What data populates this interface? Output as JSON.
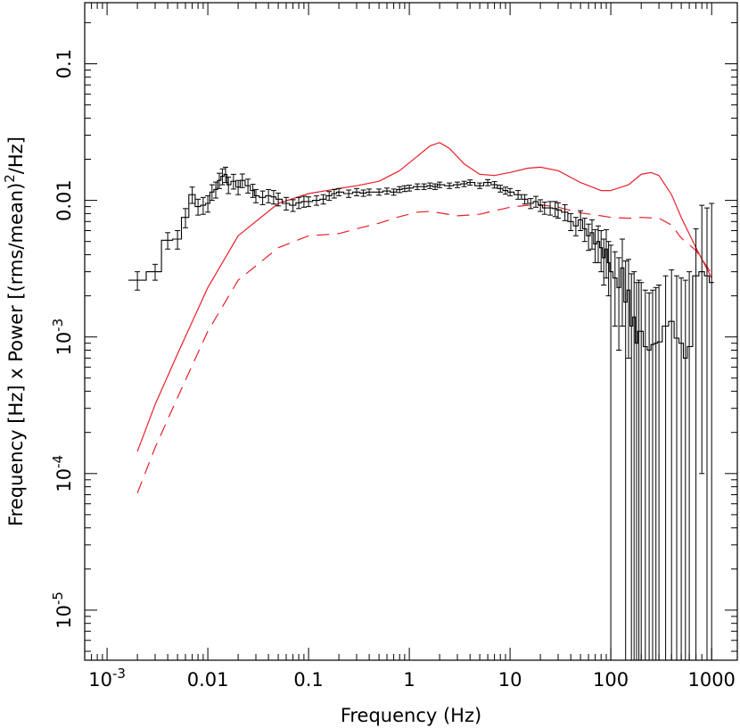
{
  "chart_data": {
    "type": "line",
    "xlabel": "Frequency (Hz)",
    "ylabel_parts": {
      "pre": "Frequency [Hz] x Power [(rms/mean)",
      "sup": "2",
      "post": "/Hz]"
    },
    "x_scale": "log",
    "y_scale": "log",
    "xlim": [
      0.0006,
      1800
    ],
    "ylim": [
      4.3e-06,
      0.28
    ],
    "x_ticks": [
      {
        "value": 0.001,
        "base": "10",
        "exp": "-3"
      },
      {
        "value": 0.01,
        "label": "0.01"
      },
      {
        "value": 0.1,
        "label": "0.1"
      },
      {
        "value": 1,
        "label": "1"
      },
      {
        "value": 10,
        "label": "10"
      },
      {
        "value": 100,
        "label": "100"
      },
      {
        "value": 1000,
        "label": "1000"
      }
    ],
    "y_ticks": [
      {
        "value": 1e-05,
        "base": "10",
        "exp": "-5"
      },
      {
        "value": 0.0001,
        "base": "10",
        "exp": "-4"
      },
      {
        "value": 0.001,
        "base": "10",
        "exp": "-3"
      },
      {
        "value": 0.01,
        "label": "0.01"
      },
      {
        "value": 0.1,
        "label": "0.1"
      }
    ],
    "colors": {
      "data": "#000000",
      "model": "#e8202a"
    },
    "series": [
      {
        "style": "solid",
        "color": "#e8202a",
        "x": [
          0.002,
          0.003,
          0.005,
          0.01,
          0.02,
          0.05,
          0.1,
          0.2,
          0.3,
          0.5,
          0.8,
          1.2,
          1.6,
          2.0,
          2.5,
          3.5,
          5,
          7,
          10,
          15,
          20,
          30,
          50,
          80,
          100,
          150,
          200,
          250,
          300,
          400,
          500,
          700,
          1000
        ],
        "y": [
          0.000145,
          0.00032,
          0.00075,
          0.0023,
          0.0055,
          0.0095,
          0.0112,
          0.0122,
          0.0128,
          0.0138,
          0.0165,
          0.021,
          0.025,
          0.0265,
          0.024,
          0.0185,
          0.0155,
          0.0152,
          0.016,
          0.0172,
          0.0175,
          0.0165,
          0.0135,
          0.0118,
          0.0118,
          0.013,
          0.0155,
          0.016,
          0.0152,
          0.011,
          0.0075,
          0.0045,
          0.0027
        ]
      },
      {
        "style": "dashed",
        "color": "#e8202a",
        "x": [
          0.002,
          0.003,
          0.005,
          0.01,
          0.02,
          0.05,
          0.1,
          0.2,
          0.3,
          0.5,
          0.8,
          1.2,
          1.6,
          2.0,
          3.0,
          5,
          7,
          10,
          15,
          20,
          30,
          50,
          80,
          100,
          150,
          200,
          300,
          400,
          500,
          700,
          1000
        ],
        "y": [
          7.2e-05,
          0.000155,
          0.00036,
          0.0011,
          0.0026,
          0.0045,
          0.0055,
          0.0057,
          0.0062,
          0.0068,
          0.0076,
          0.0082,
          0.0083,
          0.0081,
          0.0077,
          0.0079,
          0.0084,
          0.0089,
          0.0092,
          0.0093,
          0.0089,
          0.0081,
          0.0077,
          0.0075,
          0.0074,
          0.0075,
          0.0074,
          0.0066,
          0.0053,
          0.0043,
          0.0029
        ]
      },
      {
        "style": "step-errorbar",
        "color": "#000000",
        "x": [
          0.002,
          0.003,
          0.004,
          0.005,
          0.006,
          0.007,
          0.008,
          0.009,
          0.01,
          0.011,
          0.012,
          0.013,
          0.014,
          0.015,
          0.016,
          0.018,
          0.02,
          0.022,
          0.025,
          0.028,
          0.03,
          0.035,
          0.04,
          0.045,
          0.05,
          0.06,
          0.07,
          0.08,
          0.09,
          0.1,
          0.12,
          0.14,
          0.16,
          0.18,
          0.2,
          0.25,
          0.3,
          0.35,
          0.4,
          0.5,
          0.6,
          0.7,
          0.8,
          0.9,
          1.0,
          1.2,
          1.4,
          1.6,
          1.8,
          2.0,
          2.5,
          3.0,
          3.5,
          4.0,
          5.0,
          6.0,
          7.0,
          8.0,
          9.0,
          10,
          12,
          14,
          16,
          18,
          20,
          22,
          25,
          28,
          30,
          35,
          40,
          45,
          50,
          55,
          60,
          65,
          70,
          75,
          80,
          85,
          90,
          95,
          100,
          110,
          120,
          130,
          140,
          150,
          160,
          170,
          180,
          190,
          200,
          220,
          240,
          260,
          280,
          300,
          350,
          400,
          450,
          500,
          550,
          600,
          700,
          800,
          900,
          1000
        ],
        "y": [
          0.0026,
          0.003,
          0.0051,
          0.0052,
          0.0075,
          0.011,
          0.009,
          0.0092,
          0.0095,
          0.0115,
          0.012,
          0.014,
          0.015,
          0.0155,
          0.013,
          0.0138,
          0.0125,
          0.014,
          0.0128,
          0.0118,
          0.0108,
          0.0105,
          0.0108,
          0.0106,
          0.0102,
          0.0095,
          0.0092,
          0.0096,
          0.0098,
          0.0098,
          0.01,
          0.0102,
          0.0108,
          0.0112,
          0.0115,
          0.0112,
          0.0115,
          0.0113,
          0.0115,
          0.0115,
          0.0117,
          0.0115,
          0.012,
          0.0122,
          0.0123,
          0.0126,
          0.0126,
          0.0128,
          0.0126,
          0.013,
          0.0128,
          0.013,
          0.0132,
          0.0135,
          0.0128,
          0.0135,
          0.013,
          0.0122,
          0.0118,
          0.0115,
          0.011,
          0.0102,
          0.0095,
          0.0098,
          0.0092,
          0.0088,
          0.0088,
          0.0087,
          0.0085,
          0.0082,
          0.007,
          0.0065,
          0.0072,
          0.0062,
          0.0055,
          0.0058,
          0.0048,
          0.005,
          0.0045,
          0.0038,
          0.0044,
          0.0035,
          0.003,
          0.0027,
          0.0023,
          0.0032,
          0.0018,
          0.0022,
          0.0012,
          0.0014,
          0.0009,
          0.0011,
          0.0011,
          0.00085,
          0.0008,
          0.00088,
          0.0009,
          0.00092,
          0.0012,
          0.0013,
          0.00098,
          0.0009,
          0.0007,
          0.00085,
          0.0028,
          0.003,
          0.0028,
          0.0025
        ],
        "y_lo": [
          0.0022,
          0.0026,
          0.0044,
          0.0044,
          0.0063,
          0.0095,
          0.0078,
          0.0079,
          0.0082,
          0.01,
          0.0104,
          0.0122,
          0.013,
          0.0135,
          0.0112,
          0.0121,
          0.011,
          0.0124,
          0.0113,
          0.0105,
          0.0096,
          0.0093,
          0.0096,
          0.0094,
          0.0091,
          0.0085,
          0.0083,
          0.0087,
          0.0089,
          0.009,
          0.0092,
          0.0094,
          0.01,
          0.0104,
          0.0108,
          0.0105,
          0.0108,
          0.0107,
          0.0109,
          0.0109,
          0.0111,
          0.0109,
          0.0114,
          0.0116,
          0.0117,
          0.012,
          0.012,
          0.0122,
          0.012,
          0.0124,
          0.0122,
          0.0124,
          0.0126,
          0.0129,
          0.0122,
          0.0128,
          0.0123,
          0.0115,
          0.0111,
          0.0108,
          0.0102,
          0.0094,
          0.0087,
          0.0089,
          0.0083,
          0.0079,
          0.0078,
          0.0076,
          0.0074,
          0.0071,
          0.006,
          0.0055,
          0.006,
          0.005,
          0.0043,
          0.0044,
          0.0035,
          0.0035,
          0.003,
          0.0024,
          0.0027,
          0.002,
          1e-06,
          0.0012,
          0.0008,
          0.0012,
          1e-06,
          0.0007,
          1e-06,
          1e-06,
          1e-06,
          1e-06,
          1e-06,
          1e-06,
          1e-06,
          1e-06,
          1e-06,
          1e-06,
          1e-06,
          1e-06,
          1e-06,
          1e-06,
          1e-06,
          1e-06,
          1e-06,
          0.0001,
          1e-06,
          1e-06
        ],
        "y_hi": [
          0.003,
          0.0034,
          0.0058,
          0.006,
          0.0087,
          0.0125,
          0.0102,
          0.0105,
          0.0108,
          0.013,
          0.0136,
          0.0158,
          0.017,
          0.0175,
          0.0148,
          0.0155,
          0.014,
          0.0156,
          0.0143,
          0.0131,
          0.012,
          0.0117,
          0.012,
          0.0118,
          0.0113,
          0.0105,
          0.0101,
          0.0105,
          0.0107,
          0.0106,
          0.0108,
          0.011,
          0.0116,
          0.012,
          0.0122,
          0.0119,
          0.0122,
          0.0119,
          0.0121,
          0.0121,
          0.0123,
          0.0121,
          0.0126,
          0.0128,
          0.0129,
          0.0132,
          0.0132,
          0.0134,
          0.0132,
          0.0136,
          0.0134,
          0.0136,
          0.0138,
          0.0141,
          0.0134,
          0.0142,
          0.0137,
          0.0129,
          0.0125,
          0.0122,
          0.0118,
          0.011,
          0.0103,
          0.0107,
          0.0101,
          0.0097,
          0.0098,
          0.0098,
          0.0096,
          0.0093,
          0.008,
          0.0075,
          0.0084,
          0.0074,
          0.0067,
          0.0072,
          0.0061,
          0.0065,
          0.006,
          0.0052,
          0.0061,
          0.005,
          0.0047,
          0.0042,
          0.0038,
          0.0052,
          0.0036,
          0.0037,
          0.0029,
          0.003,
          0.0025,
          0.0026,
          0.0025,
          0.0022,
          0.0021,
          0.0022,
          0.0023,
          0.0024,
          0.0028,
          0.0031,
          0.0028,
          0.0027,
          0.0026,
          0.003,
          0.0062,
          0.0092,
          0.0088,
          0.0095
        ]
      }
    ]
  }
}
